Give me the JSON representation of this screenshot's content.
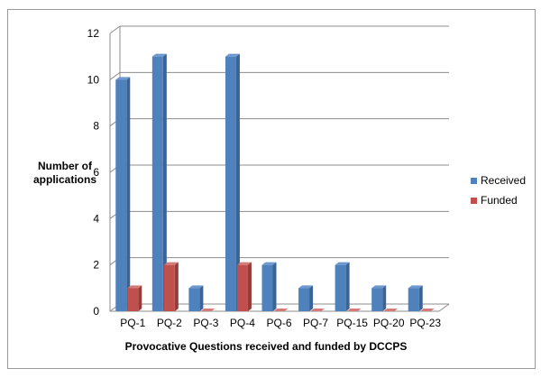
{
  "chart_data": {
    "type": "bar",
    "style": "3d-clustered-column",
    "title": "",
    "xlabel": "Provocative Questions received and funded by DCCPS",
    "ylabel": "Number of applications",
    "ylim": [
      0,
      12
    ],
    "yticks": [
      0,
      2,
      4,
      6,
      8,
      10,
      12
    ],
    "grid": true,
    "legend_position": "right",
    "categories": [
      "PQ-1",
      "PQ-2",
      "PQ-3",
      "PQ-4",
      "PQ-6",
      "PQ-7",
      "PQ-15",
      "PQ-20",
      "PQ-23"
    ],
    "series": [
      {
        "name": "Received",
        "color": "#4f81bd",
        "values": [
          10,
          11,
          1,
          11,
          2,
          1,
          2,
          1,
          1
        ]
      },
      {
        "name": "Funded",
        "color": "#c0504d",
        "values": [
          1,
          2,
          0,
          2,
          0,
          0,
          0,
          0,
          0
        ]
      }
    ]
  },
  "labels": {
    "ylabel_line1": "Number of",
    "ylabel_line2": "applications",
    "xlabel": "Provocative Questions received and funded by DCCPS",
    "legend_received": "Received",
    "legend_funded": "Funded"
  }
}
